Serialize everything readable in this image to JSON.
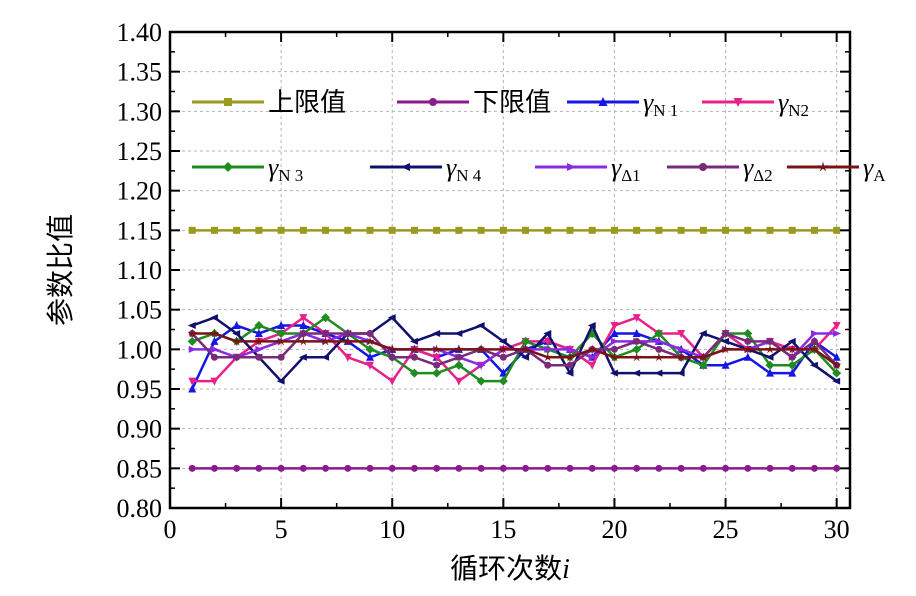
{
  "chart_data": {
    "type": "line",
    "xlabel": "循环次数",
    "xlabel_var": "i",
    "ylabel": "参数比值",
    "xlim": [
      0,
      30.6
    ],
    "ylim": [
      0.8,
      1.4
    ],
    "xticks": [
      "0",
      "5",
      "10",
      "15",
      "20",
      "25",
      "30"
    ],
    "yticks": [
      "0.80",
      "0.85",
      "0.90",
      "0.95",
      "1.00",
      "1.05",
      "1.10",
      "1.15",
      "1.20",
      "1.25",
      "1.30",
      "1.35",
      "1.40"
    ],
    "grid": true,
    "legend_position": "top",
    "x": [
      1,
      2,
      3,
      4,
      5,
      6,
      7,
      8,
      9,
      10,
      11,
      12,
      13,
      14,
      15,
      16,
      17,
      18,
      19,
      20,
      21,
      22,
      23,
      24,
      25,
      26,
      27,
      28,
      29,
      30
    ],
    "series": [
      {
        "name": "上限值",
        "symbol": "",
        "sub": "",
        "color": "#9a9a1e",
        "marker": "square",
        "values": [
          1.15,
          1.15,
          1.15,
          1.15,
          1.15,
          1.15,
          1.15,
          1.15,
          1.15,
          1.15,
          1.15,
          1.15,
          1.15,
          1.15,
          1.15,
          1.15,
          1.15,
          1.15,
          1.15,
          1.15,
          1.15,
          1.15,
          1.15,
          1.15,
          1.15,
          1.15,
          1.15,
          1.15,
          1.15,
          1.15
        ]
      },
      {
        "name": "下限值",
        "symbol": "",
        "sub": "",
        "color": "#8b1a8b",
        "marker": "circle",
        "values": [
          0.85,
          0.85,
          0.85,
          0.85,
          0.85,
          0.85,
          0.85,
          0.85,
          0.85,
          0.85,
          0.85,
          0.85,
          0.85,
          0.85,
          0.85,
          0.85,
          0.85,
          0.85,
          0.85,
          0.85,
          0.85,
          0.85,
          0.85,
          0.85,
          0.85,
          0.85,
          0.85,
          0.85,
          0.85,
          0.85
        ]
      },
      {
        "name": "",
        "symbol": "γ",
        "sub": "N 1",
        "color": "#1515e6",
        "marker": "triangle-up",
        "values": [
          0.95,
          1.01,
          1.03,
          1.02,
          1.03,
          1.03,
          1.02,
          1.01,
          0.99,
          1.0,
          1.0,
          0.99,
          1.0,
          1.0,
          0.97,
          1.0,
          1.01,
          1.0,
          0.99,
          1.02,
          1.02,
          1.01,
          1.0,
          0.98,
          0.98,
          0.99,
          0.97,
          0.97,
          1.01,
          0.99
        ]
      },
      {
        "name": "",
        "symbol": "γ",
        "sub": "N2",
        "color": "#e8208a",
        "marker": "triangle-down",
        "values": [
          0.96,
          0.96,
          0.99,
          1.01,
          1.02,
          1.04,
          1.02,
          0.99,
          0.98,
          0.96,
          1.0,
          0.99,
          0.96,
          0.98,
          1.0,
          1.01,
          1.01,
          1.0,
          0.98,
          1.03,
          1.04,
          1.02,
          1.02,
          0.99,
          1.02,
          1.0,
          1.01,
          1.0,
          1.0,
          1.03
        ]
      },
      {
        "name": "",
        "symbol": "γ",
        "sub": "N 3",
        "color": "#1e8c1e",
        "marker": "diamond",
        "values": [
          1.01,
          1.02,
          1.01,
          1.03,
          1.02,
          1.02,
          1.04,
          1.02,
          1.0,
          0.99,
          0.97,
          0.97,
          0.98,
          0.96,
          0.96,
          1.01,
          1.0,
          0.99,
          1.02,
          0.99,
          1.0,
          1.02,
          0.99,
          0.98,
          1.02,
          1.02,
          0.98,
          0.98,
          1.0,
          0.97
        ]
      },
      {
        "name": "",
        "symbol": "γ",
        "sub": "N 4",
        "color": "#10106e",
        "marker": "tri-left",
        "values": [
          1.03,
          1.04,
          1.02,
          0.99,
          0.96,
          0.99,
          0.99,
          1.02,
          1.02,
          1.04,
          1.01,
          1.02,
          1.02,
          1.03,
          1.01,
          0.99,
          1.02,
          0.97,
          1.03,
          0.97,
          0.97,
          0.97,
          0.97,
          1.02,
          1.01,
          1.0,
          0.99,
          1.01,
          0.98,
          0.96
        ]
      },
      {
        "name": "",
        "symbol": "γ",
        "sub": "Δ1",
        "color": "#8a2be2",
        "marker": "tri-right",
        "values": [
          1.0,
          1.0,
          0.99,
          1.0,
          1.01,
          1.02,
          1.01,
          1.02,
          1.01,
          1.0,
          1.0,
          1.0,
          0.99,
          0.98,
          1.0,
          1.0,
          1.0,
          1.0,
          0.99,
          1.01,
          1.01,
          1.01,
          1.0,
          0.99,
          1.0,
          1.0,
          1.01,
          0.99,
          1.02,
          1.02
        ]
      },
      {
        "name": "",
        "symbol": "γ",
        "sub": "Δ2",
        "color": "#7a2a7a",
        "marker": "circle",
        "values": [
          1.02,
          0.99,
          0.99,
          0.99,
          0.99,
          1.02,
          1.02,
          1.02,
          1.02,
          0.99,
          0.99,
          0.98,
          0.99,
          1.0,
          0.99,
          1.0,
          0.98,
          0.98,
          1.0,
          1.0,
          1.01,
          1.0,
          0.99,
          0.99,
          1.02,
          1.01,
          1.01,
          0.99,
          1.01,
          0.98
        ]
      },
      {
        "name": "",
        "symbol": "γ",
        "sub": "A",
        "color": "#7a1414",
        "marker": "star",
        "values": [
          1.02,
          1.02,
          1.01,
          1.01,
          1.01,
          1.01,
          1.01,
          1.01,
          1.01,
          1.0,
          1.0,
          1.0,
          1.0,
          1.0,
          1.0,
          1.0,
          0.99,
          0.99,
          1.0,
          0.99,
          0.99,
          0.99,
          0.99,
          0.99,
          1.0,
          1.0,
          1.0,
          1.0,
          1.0,
          0.98
        ]
      }
    ]
  }
}
